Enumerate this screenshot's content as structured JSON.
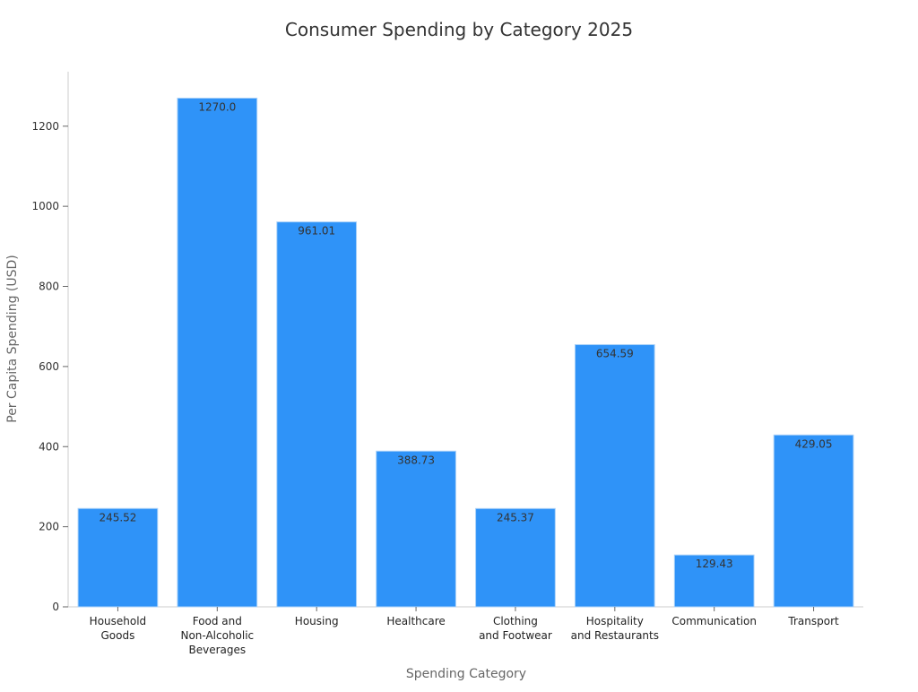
{
  "chart_data": {
    "type": "bar",
    "title": "Consumer Spending by Category 2025",
    "xlabel": "Spending Category",
    "ylabel": "Per Capita Spending (USD)",
    "categories": [
      [
        "Household",
        "Goods"
      ],
      [
        "Food and",
        "Non-Alcoholic",
        "Beverages"
      ],
      [
        "Housing"
      ],
      [
        "Healthcare"
      ],
      [
        "Clothing",
        "and Footwear"
      ],
      [
        "Hospitality",
        "and Restaurants"
      ],
      [
        "Communication"
      ],
      [
        "Transport"
      ]
    ],
    "values": [
      245.52,
      1270.0,
      961.01,
      388.73,
      245.37,
      654.59,
      129.43,
      429.05
    ],
    "data_labels": [
      "245.52",
      "1270.0",
      "961.01",
      "388.73",
      "245.37",
      "654.59",
      "129.43",
      "429.05"
    ],
    "ylim": [
      0,
      1336
    ],
    "yticks": [
      0,
      200,
      400,
      600,
      800,
      1000,
      1200
    ],
    "grid": false,
    "bar_color": "#2f93f8",
    "bar_edge_color": "#a8d0f8"
  }
}
